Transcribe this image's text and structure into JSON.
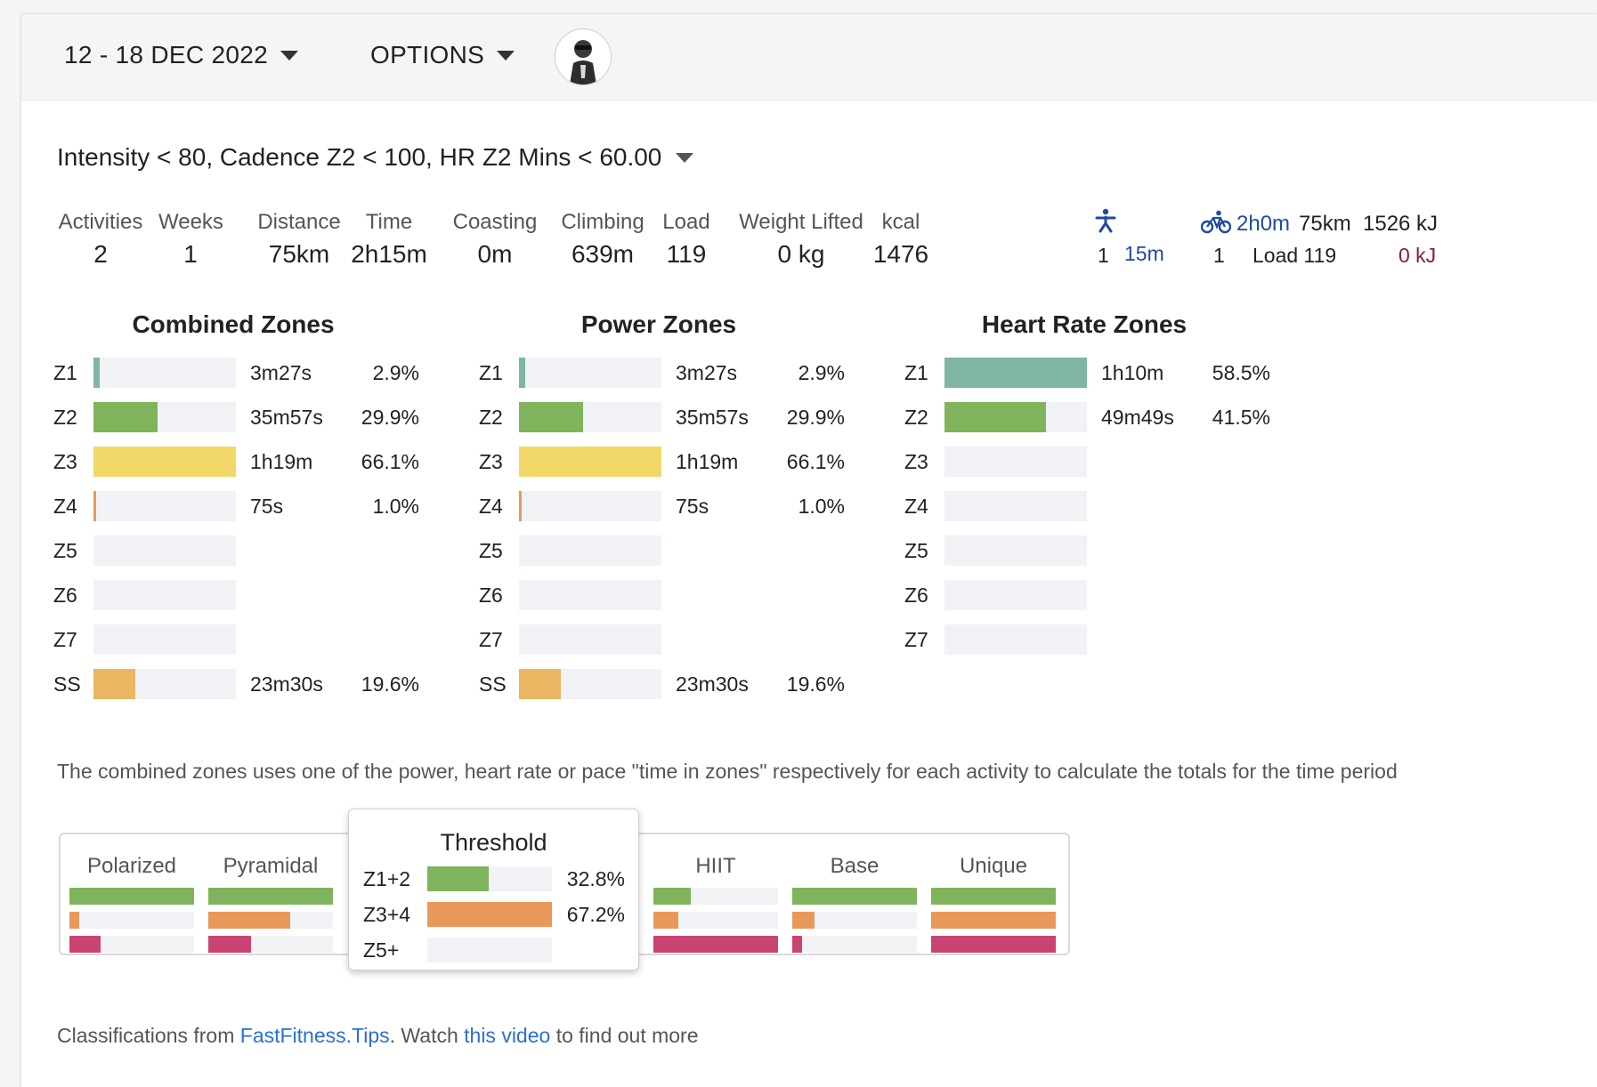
{
  "toolbar": {
    "date_range": "12 - 18 DEC 2022",
    "options": "OPTIONS"
  },
  "filter": {
    "text": "Intensity < 80, Cadence Z2 < 100, HR Z2 Mins < 60.00"
  },
  "stats": [
    {
      "label": "Activities",
      "value": "2"
    },
    {
      "label": "Weeks",
      "value": "1"
    },
    {
      "label": "Distance",
      "value": "75km"
    },
    {
      "label": "Time",
      "value": "2h15m"
    },
    {
      "label": "Coasting",
      "value": "0m"
    },
    {
      "label": "Climbing",
      "value": "639m"
    },
    {
      "label": "Load",
      "value": "119"
    },
    {
      "label": "Weight Lifted",
      "value": "0 kg"
    },
    {
      "label": "kcal",
      "value": "1476"
    }
  ],
  "sports": {
    "walk": {
      "icon": "walking-icon",
      "count": "1",
      "time": "15m"
    },
    "ride": {
      "icon": "bike-icon",
      "count": "1",
      "time": "2h0m",
      "distance": "75km",
      "energy": "1526 kJ",
      "load": "Load 119",
      "kj": "0 kJ"
    }
  },
  "colors": {
    "z1": "#7fb5a1",
    "z2": "#80b45c",
    "z3": "#f1d767",
    "z4": "#e8995a",
    "ss": "#eab661",
    "z5": "#c94473",
    "track": "#f1f2f6"
  },
  "zones": {
    "combined": {
      "title": "Combined Zones",
      "rows": [
        {
          "label": "Z1",
          "fraction": 0.044,
          "time": "3m27s",
          "pct": "2.9%",
          "color": "#7fb5a1"
        },
        {
          "label": "Z2",
          "fraction": 0.45,
          "time": "35m57s",
          "pct": "29.9%",
          "color": "#80b45c"
        },
        {
          "label": "Z3",
          "fraction": 1.0,
          "time": "1h19m",
          "pct": "66.1%",
          "color": "#f1d767"
        },
        {
          "label": "Z4",
          "fraction": 0.015,
          "time": "75s",
          "pct": "1.0%",
          "color": "#e8995a"
        },
        {
          "label": "Z5",
          "fraction": 0,
          "time": "",
          "pct": "",
          "color": "#c94473"
        },
        {
          "label": "Z6",
          "fraction": 0,
          "time": "",
          "pct": "",
          "color": "#c94473"
        },
        {
          "label": "Z7",
          "fraction": 0,
          "time": "",
          "pct": "",
          "color": "#c94473"
        },
        {
          "label": "SS",
          "fraction": 0.296,
          "time": "23m30s",
          "pct": "19.6%",
          "color": "#eab661"
        }
      ]
    },
    "power": {
      "title": "Power Zones",
      "rows": [
        {
          "label": "Z1",
          "fraction": 0.044,
          "time": "3m27s",
          "pct": "2.9%",
          "color": "#7fb5a1"
        },
        {
          "label": "Z2",
          "fraction": 0.45,
          "time": "35m57s",
          "pct": "29.9%",
          "color": "#80b45c"
        },
        {
          "label": "Z3",
          "fraction": 1.0,
          "time": "1h19m",
          "pct": "66.1%",
          "color": "#f1d767"
        },
        {
          "label": "Z4",
          "fraction": 0.015,
          "time": "75s",
          "pct": "1.0%",
          "color": "#e8995a"
        },
        {
          "label": "Z5",
          "fraction": 0,
          "time": "",
          "pct": "",
          "color": "#c94473"
        },
        {
          "label": "Z6",
          "fraction": 0,
          "time": "",
          "pct": "",
          "color": "#c94473"
        },
        {
          "label": "Z7",
          "fraction": 0,
          "time": "",
          "pct": "",
          "color": "#c94473"
        },
        {
          "label": "SS",
          "fraction": 0.296,
          "time": "23m30s",
          "pct": "19.6%",
          "color": "#eab661"
        }
      ]
    },
    "hr": {
      "title": "Heart Rate Zones",
      "rows": [
        {
          "label": "Z1",
          "fraction": 1.0,
          "time": "1h10m",
          "pct": "58.5%",
          "color": "#7fb5a1"
        },
        {
          "label": "Z2",
          "fraction": 0.71,
          "time": "49m49s",
          "pct": "41.5%",
          "color": "#80b45c"
        },
        {
          "label": "Z3",
          "fraction": 0,
          "time": "",
          "pct": "",
          "color": "#f1d767"
        },
        {
          "label": "Z4",
          "fraction": 0,
          "time": "",
          "pct": "",
          "color": "#e8995a"
        },
        {
          "label": "Z5",
          "fraction": 0,
          "time": "",
          "pct": "",
          "color": "#c94473"
        },
        {
          "label": "Z6",
          "fraction": 0,
          "time": "",
          "pct": "",
          "color": "#c94473"
        },
        {
          "label": "Z7",
          "fraction": 0,
          "time": "",
          "pct": "",
          "color": "#c94473"
        }
      ]
    }
  },
  "note": "The combined zones uses one of the power, heart rate or pace \"time in zones\" respectively for each activity to calculate the totals for the time period",
  "classifications": [
    {
      "name": "Polarized",
      "bars": [
        1.0,
        0.08,
        0.25
      ]
    },
    {
      "name": "Pyramidal",
      "bars": [
        1.0,
        0.66,
        0.34
      ]
    },
    {
      "name": "Threshold",
      "bars": [
        0.49,
        1.0,
        0.0
      ]
    },
    {
      "name": "HIIT",
      "bars": [
        0.3,
        0.2,
        1.0
      ]
    },
    {
      "name": "Base",
      "bars": [
        1.0,
        0.18,
        0.08
      ]
    },
    {
      "name": "Unique",
      "bars": [
        1.0,
        1.0,
        1.0
      ]
    }
  ],
  "popup": {
    "title": "Threshold",
    "rows": [
      {
        "label": "Z1+2",
        "fraction": 0.49,
        "pct": "32.8%",
        "color": "#80b45c"
      },
      {
        "label": "Z3+4",
        "fraction": 1.0,
        "pct": "67.2%",
        "color": "#e8995a"
      },
      {
        "label": "Z5+",
        "fraction": 0,
        "pct": "",
        "color": "#c94473"
      }
    ]
  },
  "footer": {
    "prefix": "Classifications from ",
    "link1": "FastFitness.Tips",
    "middle": ". Watch ",
    "link2": "this video",
    "suffix": " to find out more"
  }
}
